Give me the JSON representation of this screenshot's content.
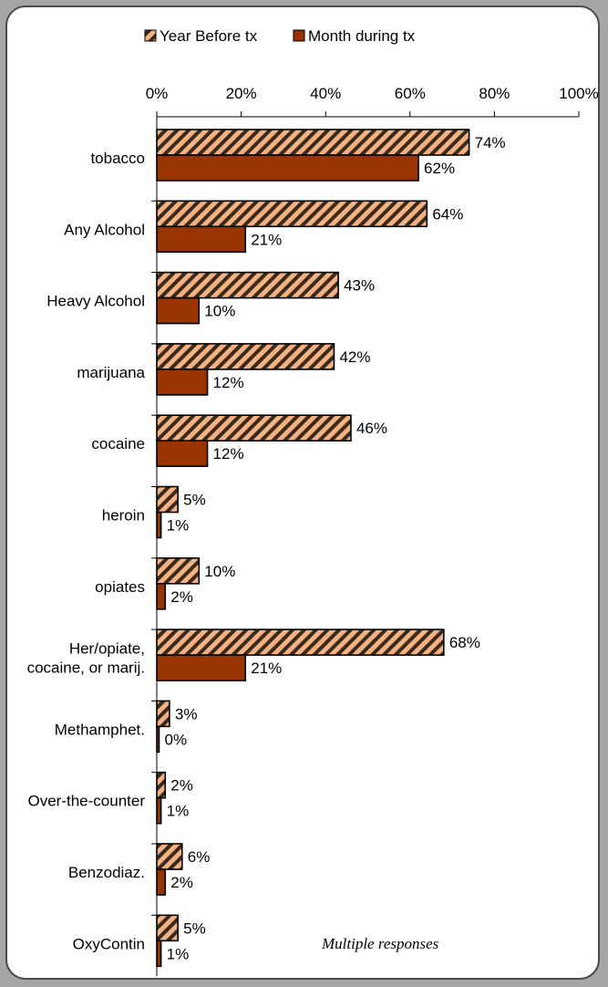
{
  "chart_data": {
    "type": "bar",
    "orientation": "horizontal",
    "categories": [
      "tobacco",
      "Any Alcohol",
      "Heavy Alcohol",
      "marijuana",
      "cocaine",
      "heroin",
      "opiates",
      "Her/opiate,\ncocaine, or marij.",
      "Methamphet.",
      "Over-the-counter",
      "Benzodiaz.",
      "OxyContin"
    ],
    "series": [
      {
        "name": "Year Before tx",
        "values": [
          74,
          64,
          43,
          42,
          46,
          5,
          10,
          68,
          3,
          2,
          6,
          5
        ],
        "color": "#f4b183",
        "pattern": "diagonal-stripes"
      },
      {
        "name": "Month during tx",
        "values": [
          62,
          21,
          10,
          12,
          12,
          1,
          2,
          21,
          0,
          1,
          2,
          1
        ],
        "color": "#993300"
      }
    ],
    "value_labels": {
      "Year Before tx": [
        "74%",
        "64%",
        "43%",
        "42%",
        "46%",
        "5%",
        "10%",
        "68%",
        "3%",
        "2%",
        "6%",
        "5%"
      ],
      "Month during tx": [
        "62%",
        "21%",
        "10%",
        "12%",
        "12%",
        "1%",
        "2%",
        "21%",
        "0%",
        "1%",
        "2%",
        "1%"
      ]
    },
    "xlim": [
      0,
      100
    ],
    "xticks": [
      "0%",
      "20%",
      "40%",
      "60%",
      "80%",
      "100%"
    ],
    "axis_position": "top",
    "legend_position": "top",
    "grid": false,
    "annotation": "Multiple responses"
  }
}
